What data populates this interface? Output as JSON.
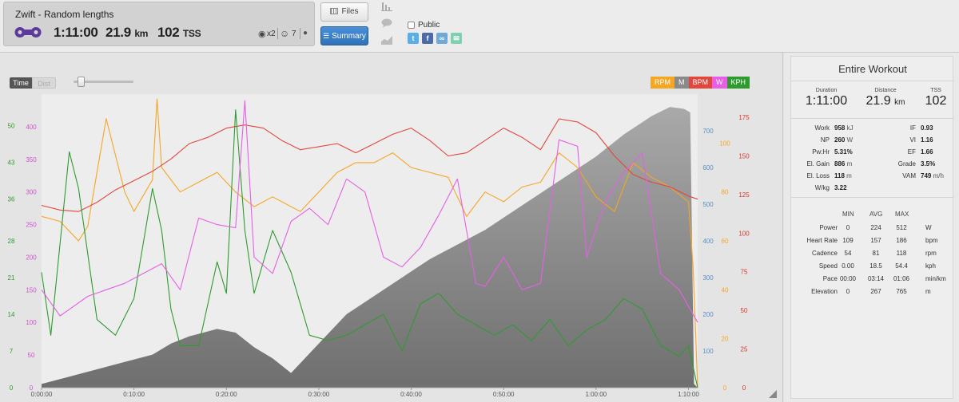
{
  "workout": {
    "title": "Zwift - Random lengths",
    "duration": "1:11:00",
    "distance_value": "21.9",
    "distance_unit": "km",
    "tss_value": "102",
    "tss_unit": "TSS",
    "medal_count": "x2",
    "smiley_count": "7"
  },
  "buttons": {
    "files_label": "Files",
    "summary_label": "Summary"
  },
  "sharing": {
    "public_label": "Public",
    "public_checked": false
  },
  "chart_controls": {
    "time_label": "Time",
    "dist_label": "Dist"
  },
  "legend": [
    {
      "label": "RPM",
      "color": "#f5a623"
    },
    {
      "label": "M",
      "color": "#8a8a8a"
    },
    {
      "label": "BPM",
      "color": "#e0483e"
    },
    {
      "label": "W",
      "color": "#e65fe6"
    },
    {
      "label": "KPH",
      "color": "#2f9b2f"
    }
  ],
  "chart_data": {
    "type": "line",
    "x_ticks": [
      "0:00:00",
      "0:10:00",
      "0:20:00",
      "0:30:00",
      "0:40:00",
      "0:50:00",
      "1:00:00",
      "1:10:00"
    ],
    "x_range_min": [
      0,
      71
    ],
    "axes": {
      "speed": {
        "unit": "kph",
        "color": "#2f9b2f",
        "ticks": [
          "0",
          "7",
          "14",
          "21",
          "28",
          "36",
          "43",
          "50"
        ],
        "range": [
          0,
          56
        ]
      },
      "power": {
        "unit": "W",
        "color": "#d24fd2",
        "ticks": [
          "0",
          "50",
          "100",
          "150",
          "200",
          "250",
          "300",
          "350",
          "400"
        ],
        "range": [
          0,
          450
        ]
      },
      "elevation": {
        "unit": "m",
        "color": "#5a8fc6",
        "ticks": [
          "100",
          "200",
          "300",
          "400",
          "500",
          "600",
          "700"
        ],
        "range": [
          0,
          800
        ]
      },
      "cadence": {
        "unit": "rpm",
        "color": "#f5a623",
        "ticks": [
          "0",
          "20",
          "40",
          "60",
          "80",
          "100"
        ],
        "range": [
          0,
          120
        ]
      },
      "heart_rate": {
        "unit": "bpm",
        "color": "#d9352b",
        "ticks": [
          "0",
          "25",
          "50",
          "75",
          "100",
          "125",
          "150",
          "175"
        ],
        "range": [
          0,
          190
        ]
      }
    },
    "series": [
      {
        "name": "M",
        "axis": "elevation",
        "color": "#8a8a8a",
        "x": [
          0,
          3,
          6,
          9,
          12,
          14,
          16,
          19,
          21,
          23,
          25,
          27,
          30,
          33,
          36,
          39,
          42,
          45,
          48,
          51,
          54,
          57,
          60,
          63,
          66,
          68,
          69.5,
          70.2,
          70.6,
          71
        ],
        "y": [
          10,
          30,
          50,
          70,
          90,
          120,
          140,
          160,
          150,
          110,
          80,
          40,
          120,
          200,
          250,
          300,
          350,
          390,
          430,
          480,
          530,
          580,
          630,
          690,
          740,
          765,
          760,
          750,
          10,
          0
        ]
      },
      {
        "name": "BPM",
        "axis": "heart_rate",
        "color": "#e0483e",
        "x": [
          0,
          2,
          4,
          6,
          8,
          10,
          12,
          14,
          16,
          18,
          20,
          22,
          24,
          26,
          28,
          30,
          32,
          34,
          36,
          38,
          40,
          42,
          44,
          46,
          48,
          50,
          52,
          54,
          56,
          58,
          60,
          62,
          64,
          66,
          68,
          70,
          71
        ],
        "y": [
          118,
          115,
          114,
          120,
          128,
          134,
          140,
          148,
          158,
          162,
          168,
          170,
          168,
          160,
          154,
          156,
          158,
          152,
          158,
          164,
          168,
          160,
          150,
          152,
          160,
          168,
          162,
          154,
          174,
          172,
          165,
          150,
          138,
          133,
          130,
          124,
          122
        ]
      },
      {
        "name": "RPM",
        "axis": "cadence",
        "color": "#f5a623",
        "x": [
          0,
          2,
          4,
          5,
          7,
          9,
          10,
          12,
          12.5,
          13,
          15,
          17,
          19,
          21,
          23,
          25,
          28,
          30,
          32,
          34,
          36,
          38,
          40,
          42,
          44,
          46,
          48,
          50,
          52,
          54,
          56,
          58,
          60,
          62,
          64,
          66,
          68,
          70,
          70.5,
          71
        ],
        "y": [
          70,
          68,
          60,
          66,
          110,
          80,
          72,
          85,
          118,
          90,
          80,
          84,
          88,
          80,
          74,
          78,
          72,
          80,
          88,
          92,
          92,
          96,
          90,
          88,
          86,
          70,
          80,
          76,
          82,
          84,
          96,
          90,
          78,
          72,
          92,
          86,
          82,
          76,
          50,
          0
        ]
      },
      {
        "name": "W",
        "axis": "power",
        "color": "#e65fe6",
        "x": [
          0,
          2,
          3,
          5,
          7,
          9,
          11,
          13,
          15,
          17,
          19,
          21,
          22,
          23,
          25,
          27,
          29,
          31,
          33,
          35,
          37,
          39,
          41,
          43,
          45,
          47,
          48,
          50,
          52,
          54,
          56,
          58,
          59,
          61,
          63,
          65,
          67,
          69,
          70,
          71
        ],
        "y": [
          150,
          110,
          120,
          140,
          150,
          160,
          175,
          190,
          150,
          260,
          250,
          245,
          440,
          200,
          175,
          255,
          275,
          250,
          320,
          300,
          200,
          185,
          215,
          265,
          320,
          160,
          155,
          200,
          150,
          160,
          380,
          370,
          200,
          285,
          330,
          360,
          175,
          150,
          125,
          100
        ]
      },
      {
        "name": "KPH",
        "axis": "speed",
        "color": "#2f9b2f",
        "x": [
          0,
          1,
          3,
          4,
          6,
          8,
          10,
          12,
          13,
          14,
          15,
          17,
          19,
          20,
          21,
          22,
          23,
          25,
          27,
          29,
          31,
          33,
          35,
          37,
          39,
          41,
          43,
          45,
          47,
          49,
          51,
          53,
          55,
          57,
          59,
          61,
          63,
          65,
          67,
          69,
          70,
          71
        ],
        "y": [
          22,
          10,
          45,
          38,
          13,
          10,
          17,
          38,
          30,
          15,
          8,
          8,
          24,
          18,
          53,
          30,
          18,
          30,
          22,
          10,
          9,
          10,
          12,
          14,
          7,
          16,
          18,
          14,
          12,
          10,
          12,
          9,
          13,
          8,
          11,
          13,
          17,
          15,
          8,
          6,
          8,
          0
        ]
      }
    ]
  },
  "summary": {
    "title": "Entire Workout",
    "duration_label": "Duration",
    "duration_value": "1:11:00",
    "distance_label": "Distance",
    "distance_value": "21.9",
    "distance_unit": "km",
    "tss_label": "TSS",
    "tss_value": "102",
    "metrics_left": [
      {
        "label": "Work",
        "value": "958",
        "unit": "kJ"
      },
      {
        "label": "NP",
        "value": "260",
        "unit": "W"
      },
      {
        "label": "Pw:Hr",
        "value": "5.31%",
        "unit": ""
      },
      {
        "label": "El. Gain",
        "value": "886",
        "unit": "m"
      },
      {
        "label": "El. Loss",
        "value": "118",
        "unit": "m"
      },
      {
        "label": "W/kg",
        "value": "3.22",
        "unit": ""
      }
    ],
    "metrics_right": [
      {
        "label": "IF",
        "value": "0.93",
        "unit": ""
      },
      {
        "label": "VI",
        "value": "1.16",
        "unit": ""
      },
      {
        "label": "EF",
        "value": "1.66",
        "unit": ""
      },
      {
        "label": "Grade",
        "value": "3.5%",
        "unit": ""
      },
      {
        "label": "VAM",
        "value": "749",
        "unit": "m/h"
      }
    ],
    "table_headers": [
      "MIN",
      "AVG",
      "MAX"
    ],
    "table_rows": [
      {
        "label": "Power",
        "min": "0",
        "avg": "224",
        "max": "512",
        "unit": "W"
      },
      {
        "label": "Heart Rate",
        "min": "109",
        "avg": "157",
        "max": "186",
        "unit": "bpm"
      },
      {
        "label": "Cadence",
        "min": "54",
        "avg": "81",
        "max": "118",
        "unit": "rpm"
      },
      {
        "label": "Speed",
        "min": "0.00",
        "avg": "18.5",
        "max": "54.4",
        "unit": "kph"
      },
      {
        "label": "Pace",
        "min": "00:00",
        "avg": "03:14",
        "max": "01:06",
        "unit": "min/km"
      },
      {
        "label": "Elevation",
        "min": "0",
        "avg": "267",
        "max": "765",
        "unit": "m"
      }
    ]
  }
}
